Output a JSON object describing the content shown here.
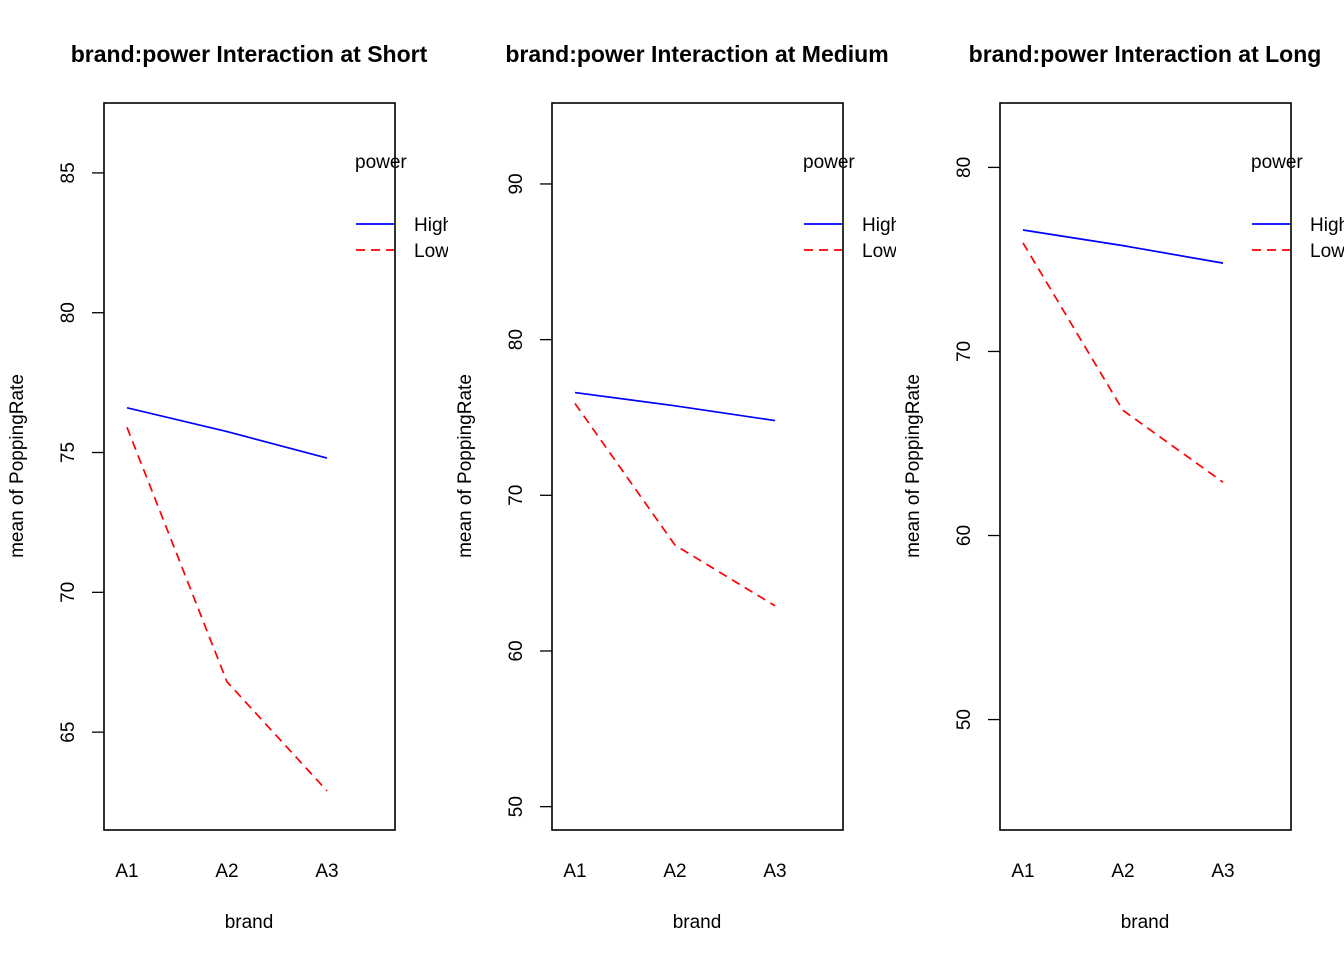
{
  "chart_data": [
    {
      "type": "line",
      "title": "brand:power Interaction at Short",
      "xlabel": "brand",
      "ylabel": "mean of  PoppingRate",
      "categories": [
        "A1",
        "A2",
        "A3"
      ],
      "ylim": [
        61.5,
        87.5
      ],
      "yticks": [
        65,
        70,
        75,
        80,
        85
      ],
      "legend": {
        "title": "power",
        "position": "top-right",
        "entries": [
          "High",
          "Low"
        ]
      },
      "series": [
        {
          "name": "High",
          "values": [
            76.6,
            75.75,
            74.8
          ],
          "color": "#0000ff",
          "dash": "solid"
        },
        {
          "name": "Low",
          "values": [
            75.9,
            66.8,
            62.9
          ],
          "color": "#ff0000",
          "dash": "dashed"
        }
      ]
    },
    {
      "type": "line",
      "title": "brand:power Interaction at Medium",
      "xlabel": "brand",
      "ylabel": "mean of  PoppingRate",
      "categories": [
        "A1",
        "A2",
        "A3"
      ],
      "ylim": [
        48.5,
        95.2
      ],
      "yticks": [
        50,
        60,
        70,
        80,
        90
      ],
      "legend": {
        "title": "power",
        "position": "top-right",
        "entries": [
          "High",
          "Low"
        ]
      },
      "series": [
        {
          "name": "High",
          "values": [
            76.6,
            75.75,
            74.8
          ],
          "color": "#0000ff",
          "dash": "solid"
        },
        {
          "name": "Low",
          "values": [
            75.9,
            66.8,
            62.9
          ],
          "color": "#ff0000",
          "dash": "dashed"
        }
      ]
    },
    {
      "type": "line",
      "title": "brand:power Interaction at Long",
      "xlabel": "brand",
      "ylabel": "mean of  PoppingRate",
      "categories": [
        "A1",
        "A2",
        "A3"
      ],
      "ylim": [
        44.0,
        83.5
      ],
      "yticks": [
        50,
        60,
        70,
        80
      ],
      "legend": {
        "title": "power",
        "position": "top-right",
        "entries": [
          "High",
          "Low"
        ]
      },
      "series": [
        {
          "name": "High",
          "values": [
            76.6,
            75.75,
            74.8
          ],
          "color": "#0000ff",
          "dash": "solid"
        },
        {
          "name": "Low",
          "values": [
            75.9,
            66.8,
            62.9
          ],
          "color": "#ff0000",
          "dash": "dashed"
        }
      ]
    }
  ]
}
